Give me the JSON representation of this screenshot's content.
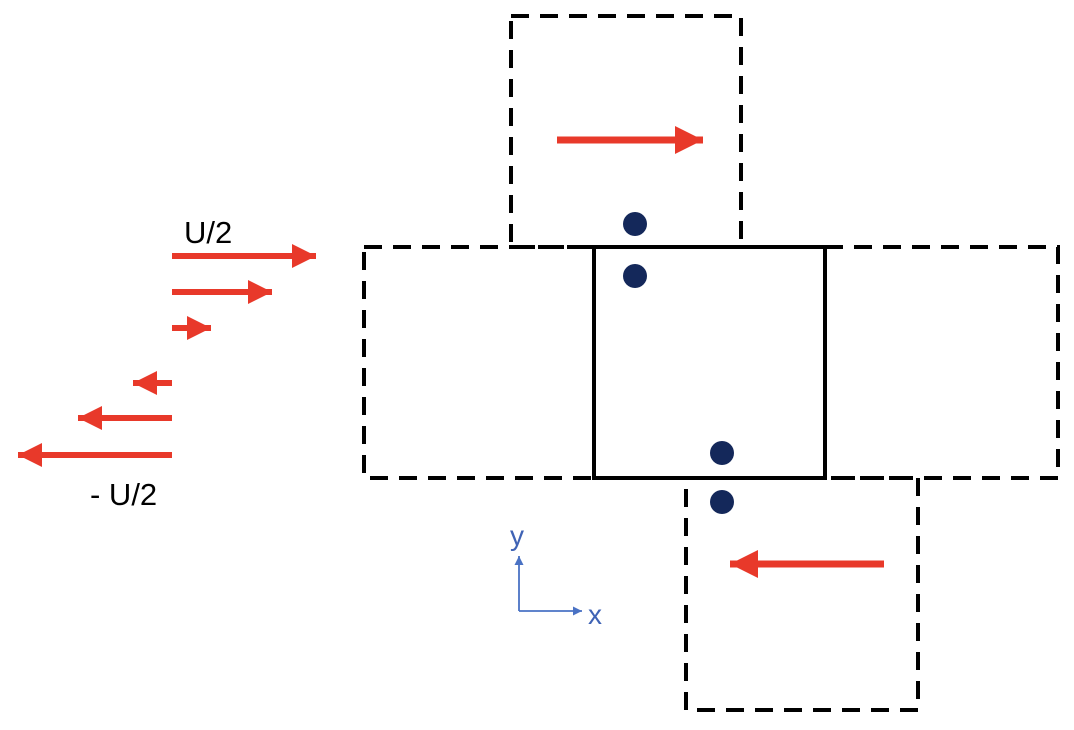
{
  "labels": {
    "top_velocity": "U/2",
    "bottom_velocity": "- U/2",
    "axis_y": "y",
    "axis_x": "x"
  },
  "colors": {
    "arrow": "#e8392a",
    "box_stroke": "#000000",
    "particle": "#14285a",
    "axes": "#4a72c4"
  }
}
